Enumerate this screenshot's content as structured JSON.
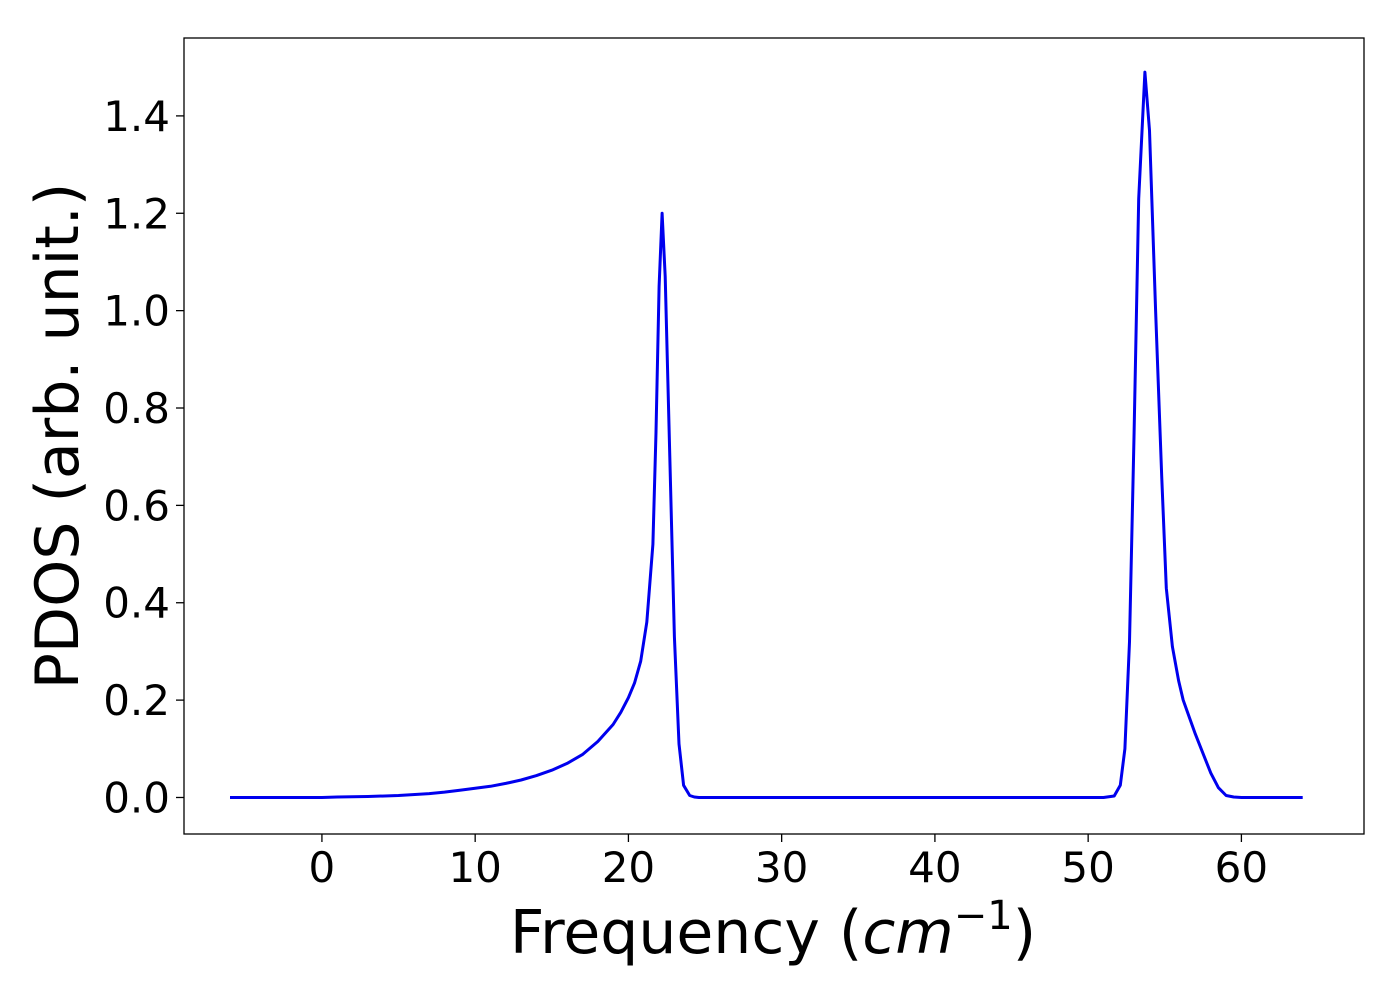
{
  "chart_data": {
    "type": "line",
    "xlabel_main": "Frequency (",
    "xlabel_math": "cm",
    "xlabel_sup": "−1",
    "xlabel_close": ")",
    "ylabel": "PDOS (arb. unit.)",
    "xlim": [
      -9,
      68
    ],
    "ylim": [
      -0.075,
      1.56
    ],
    "xticks": [
      0,
      10,
      20,
      30,
      40,
      50,
      60
    ],
    "xtick_labels": [
      "0",
      "10",
      "20",
      "30",
      "40",
      "50",
      "60"
    ],
    "yticks": [
      0.0,
      0.2,
      0.4,
      0.6,
      0.8,
      1.0,
      1.2,
      1.4
    ],
    "ytick_labels": [
      "0.0",
      "0.2",
      "0.4",
      "0.6",
      "0.8",
      "1.0",
      "1.2",
      "1.4"
    ],
    "grid": false,
    "series": [
      {
        "color": "#0000ee",
        "x": [
          -6,
          0,
          1,
          3,
          5,
          7,
          8,
          9,
          10,
          11,
          12,
          13,
          14,
          15,
          16,
          17,
          18,
          19,
          19.5,
          20,
          20.4,
          20.8,
          21.2,
          21.6,
          21.8,
          22.0,
          22.2,
          22.4,
          22.7,
          23.0,
          23.3,
          23.6,
          24.0,
          24.3,
          24.6,
          26,
          30,
          40,
          51,
          51.7,
          52.1,
          52.4,
          52.7,
          53.0,
          53.3,
          53.7,
          54.0,
          54.4,
          54.8,
          55.1,
          55.5,
          55.9,
          56.2,
          56.6,
          57.0,
          57.5,
          58.0,
          58.5,
          59.0,
          59.5,
          60.0,
          61,
          62,
          63,
          64
        ],
        "y": [
          0.0,
          0.0,
          0.001,
          0.002,
          0.004,
          0.008,
          0.011,
          0.015,
          0.019,
          0.023,
          0.029,
          0.036,
          0.045,
          0.056,
          0.07,
          0.088,
          0.115,
          0.15,
          0.175,
          0.205,
          0.235,
          0.28,
          0.36,
          0.52,
          0.75,
          1.05,
          1.2,
          1.07,
          0.7,
          0.33,
          0.11,
          0.025,
          0.004,
          0.001,
          0.0,
          0.0,
          0.0,
          0.0,
          0.0,
          0.003,
          0.025,
          0.1,
          0.32,
          0.75,
          1.23,
          1.49,
          1.37,
          1.0,
          0.66,
          0.43,
          0.31,
          0.24,
          0.2,
          0.165,
          0.13,
          0.09,
          0.05,
          0.02,
          0.004,
          0.001,
          0.0,
          0.0,
          0.0,
          0.0,
          0.0
        ]
      }
    ]
  }
}
